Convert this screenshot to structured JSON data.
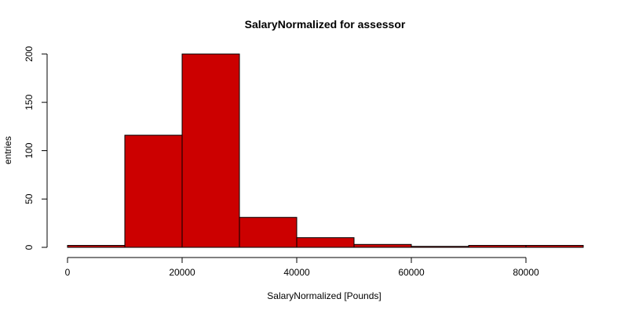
{
  "chart_data": {
    "type": "bar",
    "title": "SalaryNormalized for assessor",
    "xlabel": "SalaryNormalized [Pounds]",
    "ylabel": "entries",
    "bar_color": "#CC0000",
    "border_color": "#000000",
    "bins": [
      {
        "start": 0,
        "end": 10000,
        "value": 2
      },
      {
        "start": 10000,
        "end": 20000,
        "value": 116
      },
      {
        "start": 20000,
        "end": 30000,
        "value": 200
      },
      {
        "start": 30000,
        "end": 40000,
        "value": 31
      },
      {
        "start": 40000,
        "end": 50000,
        "value": 10
      },
      {
        "start": 50000,
        "end": 60000,
        "value": 3
      },
      {
        "start": 60000,
        "end": 70000,
        "value": 1
      },
      {
        "start": 70000,
        "end": 80000,
        "value": 2
      },
      {
        "start": 80000,
        "end": 90000,
        "value": 2
      }
    ],
    "xlim": [
      0,
      90000
    ],
    "ylim": [
      0,
      200
    ],
    "x_ticks": [
      0,
      20000,
      40000,
      60000,
      80000
    ],
    "y_ticks": [
      0,
      50,
      100,
      150,
      200
    ],
    "x_tick_labels": [
      "0",
      "20000",
      "40000",
      "60000",
      "80000"
    ],
    "y_tick_labels": [
      "0",
      "50",
      "100",
      "150",
      "200"
    ],
    "grid": false,
    "legend": "none"
  }
}
